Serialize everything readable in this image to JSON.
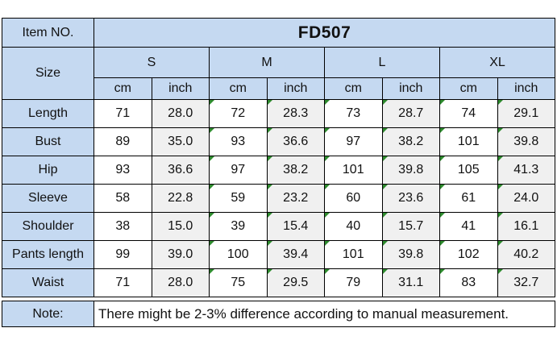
{
  "chart_data": {
    "type": "table",
    "title": "FD507",
    "item_no_label": "Item NO.",
    "item_no_value": "FD507",
    "size_label": "Size",
    "size_groups": [
      "S",
      "M",
      "L",
      "XL"
    ],
    "unit_labels": [
      "cm",
      "inch"
    ],
    "columns": [
      "Size",
      "S-cm",
      "S-inch",
      "M-cm",
      "M-inch",
      "L-cm",
      "L-inch",
      "XL-cm",
      "XL-inch"
    ],
    "rows": [
      {
        "label": "Length",
        "values": [
          "71",
          "28.0",
          "72",
          "28.3",
          "73",
          "28.7",
          "74",
          "29.1"
        ]
      },
      {
        "label": "Bust",
        "values": [
          "89",
          "35.0",
          "93",
          "36.6",
          "97",
          "38.2",
          "101",
          "39.8"
        ]
      },
      {
        "label": "Hip",
        "values": [
          "93",
          "36.6",
          "97",
          "38.2",
          "101",
          "39.8",
          "105",
          "41.3"
        ]
      },
      {
        "label": "Sleeve",
        "values": [
          "58",
          "22.8",
          "59",
          "23.2",
          "60",
          "23.6",
          "61",
          "24.0"
        ]
      },
      {
        "label": "Shoulder",
        "values": [
          "38",
          "15.0",
          "39",
          "15.4",
          "40",
          "15.7",
          "41",
          "16.1"
        ]
      },
      {
        "label": "Pants length",
        "values": [
          "99",
          "39.0",
          "100",
          "39.4",
          "101",
          "39.8",
          "102",
          "40.2"
        ]
      },
      {
        "label": "Waist",
        "values": [
          "71",
          "28.0",
          "75",
          "29.5",
          "79",
          "31.1",
          "83",
          "32.7"
        ]
      }
    ],
    "note_label": "Note:",
    "note_text": "There might be 2-3% difference according to manual measurement."
  },
  "colors": {
    "header_blue": "#c5d9f1",
    "inch_gray": "#f0f0f0",
    "border_black": "#000000",
    "comment_green": "#2e8b2e"
  }
}
